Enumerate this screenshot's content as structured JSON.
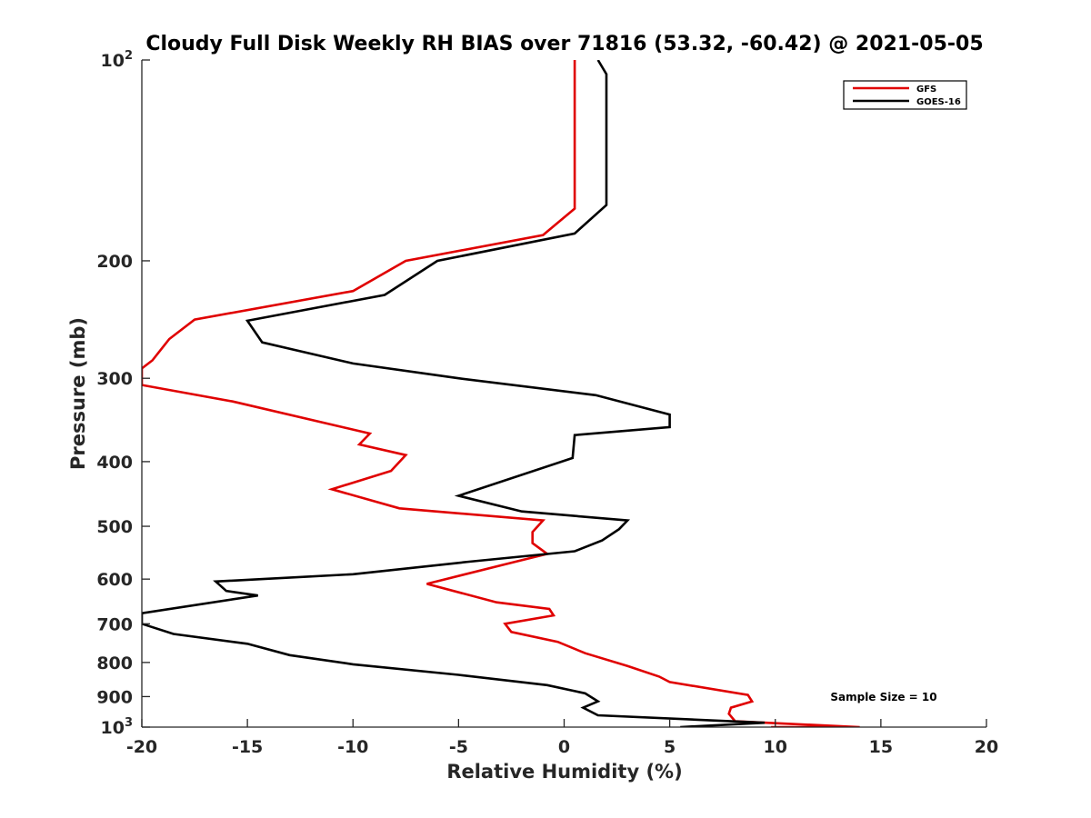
{
  "chart_data": {
    "type": "line",
    "title": "Cloudy Full Disk Weekly RH BIAS over 71816 (53.32, -60.42) @ 2021-05-05",
    "xlabel": "Relative Humidity (%)",
    "ylabel": "Pressure (mb)",
    "xlim": [
      -20,
      20
    ],
    "ylim": [
      100,
      1000
    ],
    "yscale": "log",
    "y_reversed": true,
    "grid": false,
    "legend_position": "top-right",
    "x_ticks": [
      -20,
      -15,
      -10,
      -5,
      0,
      5,
      10,
      15,
      20
    ],
    "x_tick_labels": [
      "-20",
      "-15",
      "-10",
      "-5",
      "0",
      "5",
      "10",
      "15",
      "20"
    ],
    "y_ticks": [
      100,
      200,
      300,
      400,
      500,
      600,
      700,
      800,
      900,
      1000
    ],
    "y_tick_labels": [
      {
        "base": "10",
        "exp": "2"
      },
      {
        "base": "200",
        "exp": ""
      },
      {
        "base": "300",
        "exp": ""
      },
      {
        "base": "400",
        "exp": ""
      },
      {
        "base": "500",
        "exp": ""
      },
      {
        "base": "600",
        "exp": ""
      },
      {
        "base": "700",
        "exp": ""
      },
      {
        "base": "800",
        "exp": ""
      },
      {
        "base": "900",
        "exp": ""
      },
      {
        "base": "10",
        "exp": "3"
      }
    ],
    "annotation": "Sample Size = 10",
    "series": [
      {
        "name": "GFS",
        "color": "#e00000",
        "x": [
          0.5,
          0.5,
          0.5,
          0.5,
          -1.0,
          -7.5,
          -10.0,
          -17.5,
          -18.7,
          -19.5,
          -20.0,
          -20.0,
          -15.7,
          -9.2,
          -9.7,
          -7.5,
          -8.2,
          -11.0,
          -7.8,
          -1.0,
          -1.5,
          -1.5,
          -0.8,
          -2.3,
          -6.5,
          -3.2,
          -0.7,
          -0.5,
          -2.8,
          -2.5,
          -0.3,
          1.0,
          3.0,
          4.5,
          5.0,
          8.7,
          8.9,
          7.9,
          7.8,
          8.1,
          14.0,
          9.8
        ],
        "y": [
          100,
          120,
          150,
          167,
          183,
          200,
          222,
          245,
          262,
          282,
          290,
          307,
          325,
          363,
          377,
          391,
          413,
          440,
          470,
          490,
          510,
          530,
          550,
          565,
          610,
          650,
          665,
          680,
          700,
          720,
          745,
          775,
          810,
          840,
          856,
          895,
          915,
          935,
          955,
          980,
          1000,
          1000
        ]
      },
      {
        "name": "GOES-16",
        "color": "#000000",
        "x": [
          1.6,
          2.0,
          2.0,
          2.0,
          2.0,
          0.5,
          -6.0,
          -8.5,
          -15.0,
          -14.3,
          -10.0,
          -5.0,
          1.5,
          5.0,
          5.0,
          0.5,
          0.4,
          -5.0,
          -2.0,
          3.0,
          2.6,
          1.8,
          0.5,
          -4.5,
          -10.0,
          -16.5,
          -16.0,
          -14.5,
          -20.0,
          -20.0,
          -18.5,
          -15.0,
          -13.0,
          -10.0,
          -5.0,
          -0.8,
          1.0,
          1.6,
          0.9,
          1.6,
          9.5,
          5.5
        ],
        "y": [
          100,
          105,
          120,
          150,
          165,
          182,
          200,
          225,
          246,
          265,
          285,
          300,
          318,
          340,
          355,
          365,
          395,
          450,
          475,
          490,
          505,
          525,
          545,
          565,
          590,
          605,
          625,
          635,
          675,
          700,
          725,
          750,
          780,
          805,
          835,
          865,
          890,
          915,
          935,
          960,
          985,
          1000
        ]
      }
    ]
  }
}
